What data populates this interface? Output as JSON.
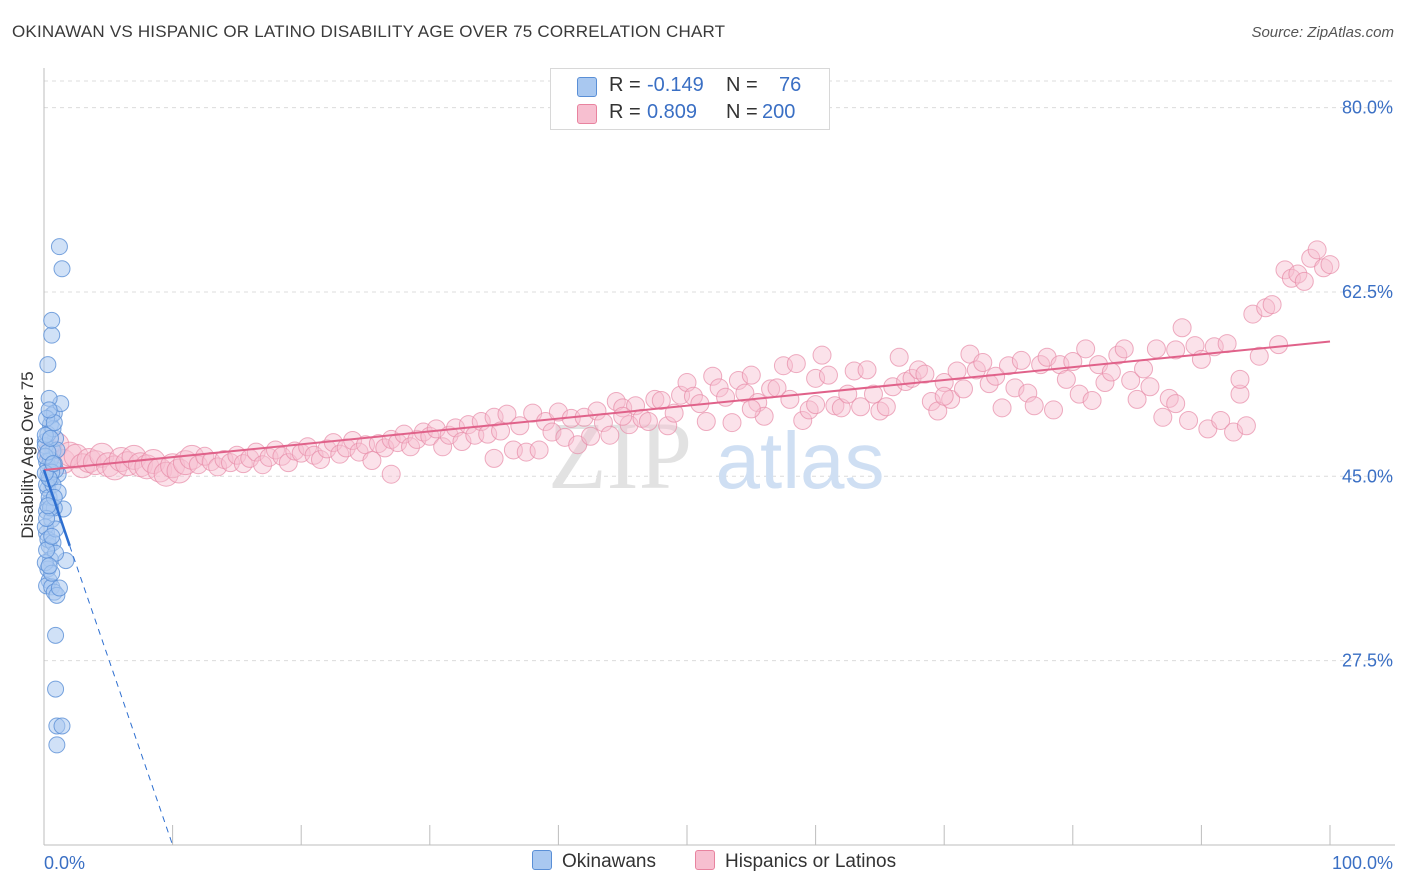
{
  "title": "OKINAWAN VS HISPANIC OR LATINO DISABILITY AGE OVER 75 CORRELATION CHART",
  "source": "Source: ZipAtlas.com",
  "watermark": {
    "zip": "ZIP",
    "atlas": "atlas"
  },
  "legend_top": {
    "rows": [
      {
        "r_label": "R =",
        "r_value": "-0.149",
        "n_label": "N =",
        "n_value": "76",
        "color": "#a9c8f0",
        "border": "#5a8fd6"
      },
      {
        "r_label": "R =",
        "r_value": "0.809",
        "n_label": "N =",
        "n_value": "200",
        "color": "#f7bfd0",
        "border": "#e8839f"
      }
    ]
  },
  "colors": {
    "okinawan_fill": "#a9c8f0",
    "okinawan_stroke": "#5a8fd6",
    "okinawan_line": "#2e6fd0",
    "hispanic_fill": "#f7bfd0",
    "hispanic_stroke": "#e78aa6",
    "hispanic_line": "#e0628a",
    "tick_text": "#3a6fc4",
    "grid": "#dcdcdc"
  },
  "chart_data": {
    "type": "scatter",
    "title": "OKINAWAN VS HISPANIC OR LATINO DISABILITY AGE OVER 75 CORRELATION CHART",
    "xlabel": "",
    "ylabel": "Disability Age Over 75",
    "xlim": [
      0,
      100
    ],
    "ylim": [
      10,
      83
    ],
    "x_tick_labels": [
      "0.0%",
      "100.0%"
    ],
    "y_ticks": [
      27.5,
      45.0,
      62.5,
      80.0
    ],
    "y_tick_labels": [
      "27.5%",
      "45.0%",
      "62.5%",
      "80.0%"
    ],
    "grid": true,
    "legend_position": "bottom-center",
    "series": [
      {
        "name": "Okinawans",
        "r": -0.149,
        "n": 76,
        "trend": {
          "x": [
            0,
            2
          ],
          "y": [
            45.6,
            38.4
          ],
          "extended_to": [
            10,
            10.0
          ]
        },
        "points": [
          [
            0.1,
            48.3
          ],
          [
            0.2,
            46.4
          ],
          [
            0.3,
            45.0
          ],
          [
            0.5,
            44.7
          ],
          [
            0.3,
            43.8
          ],
          [
            0.4,
            42.5
          ],
          [
            0.2,
            41.7
          ],
          [
            0.6,
            40.9
          ],
          [
            0.2,
            39.6
          ],
          [
            0.4,
            38.4
          ],
          [
            0.5,
            37.1
          ],
          [
            0.3,
            36.2
          ],
          [
            0.4,
            35.1
          ],
          [
            0.2,
            34.6
          ],
          [
            0.6,
            34.5
          ],
          [
            0.8,
            34.0
          ],
          [
            1.0,
            33.7
          ],
          [
            1.2,
            34.4
          ],
          [
            1.7,
            37.0
          ],
          [
            1.5,
            41.9
          ],
          [
            1.1,
            45.2
          ],
          [
            0.9,
            45.6
          ],
          [
            0.7,
            47.4
          ],
          [
            0.9,
            48.6
          ],
          [
            0.5,
            49.9
          ],
          [
            0.6,
            50.8
          ],
          [
            0.8,
            51.0
          ],
          [
            1.3,
            51.9
          ],
          [
            0.4,
            52.4
          ],
          [
            0.3,
            55.6
          ],
          [
            0.6,
            58.4
          ],
          [
            0.6,
            59.8
          ],
          [
            1.4,
            64.7
          ],
          [
            1.2,
            66.8
          ],
          [
            0.9,
            29.9
          ],
          [
            0.9,
            24.8
          ],
          [
            1.0,
            21.3
          ],
          [
            1.4,
            21.3
          ],
          [
            1.0,
            19.5
          ],
          [
            0.3,
            45.9
          ],
          [
            0.5,
            46.6
          ],
          [
            0.8,
            46.2
          ],
          [
            0.1,
            47.9
          ],
          [
            0.3,
            49.0
          ],
          [
            0.7,
            49.5
          ],
          [
            1.0,
            47.5
          ],
          [
            0.2,
            44.2
          ],
          [
            0.4,
            43.0
          ],
          [
            0.8,
            42.0
          ],
          [
            0.1,
            40.2
          ],
          [
            0.3,
            39.0
          ],
          [
            0.7,
            38.7
          ],
          [
            0.9,
            37.7
          ],
          [
            0.1,
            36.8
          ],
          [
            0.6,
            35.8
          ],
          [
            0.2,
            50.5
          ],
          [
            0.8,
            50.1
          ],
          [
            0.4,
            51.3
          ],
          [
            0.1,
            46.9
          ],
          [
            0.6,
            45.4
          ],
          [
            0.5,
            42.0
          ],
          [
            0.9,
            40.0
          ],
          [
            0.2,
            38.0
          ],
          [
            0.4,
            36.5
          ],
          [
            0.7,
            44.2
          ],
          [
            1.1,
            43.5
          ],
          [
            0.3,
            47.3
          ],
          [
            0.1,
            48.9
          ],
          [
            0.5,
            48.6
          ],
          [
            0.2,
            41.0
          ],
          [
            0.6,
            39.3
          ],
          [
            0.8,
            43.0
          ],
          [
            0.4,
            44.8
          ],
          [
            0.1,
            45.3
          ],
          [
            0.7,
            46.2
          ],
          [
            0.3,
            42.2
          ]
        ]
      },
      {
        "name": "Hispanics or Latinos",
        "r": 0.809,
        "n": 200,
        "trend": {
          "x": [
            0,
            100
          ],
          "y": [
            45.6,
            57.8
          ]
        },
        "points": [
          [
            0.5,
            47.3
          ],
          [
            1.0,
            48.0
          ],
          [
            1.5,
            46.4
          ],
          [
            2.0,
            47.1
          ],
          [
            2.5,
            46.9
          ],
          [
            3.0,
            46.0
          ],
          [
            3.5,
            46.5
          ],
          [
            4.0,
            46.3
          ],
          [
            4.5,
            47.0
          ],
          [
            5.0,
            46.1
          ],
          [
            5.5,
            45.8
          ],
          [
            6.0,
            46.6
          ],
          [
            6.5,
            46.2
          ],
          [
            7.0,
            46.8
          ],
          [
            7.5,
            46.1
          ],
          [
            8.0,
            45.9
          ],
          [
            8.5,
            46.4
          ],
          [
            9.0,
            45.6
          ],
          [
            9.5,
            45.2
          ],
          [
            10.0,
            46.0
          ],
          [
            10.5,
            45.5
          ],
          [
            11.0,
            46.3
          ],
          [
            11.5,
            46.8
          ],
          [
            12.0,
            46.1
          ],
          [
            12.5,
            46.9
          ],
          [
            13.0,
            46.4
          ],
          [
            13.5,
            45.9
          ],
          [
            14.0,
            46.6
          ],
          [
            14.5,
            46.3
          ],
          [
            15.0,
            47.0
          ],
          [
            15.5,
            46.2
          ],
          [
            16.0,
            46.7
          ],
          [
            16.5,
            47.3
          ],
          [
            17.0,
            46.1
          ],
          [
            17.5,
            46.8
          ],
          [
            18.0,
            47.5
          ],
          [
            18.5,
            46.9
          ],
          [
            19.0,
            46.3
          ],
          [
            19.5,
            47.4
          ],
          [
            20.0,
            47.2
          ],
          [
            20.5,
            47.8
          ],
          [
            21.0,
            47.0
          ],
          [
            21.5,
            46.6
          ],
          [
            22.0,
            47.6
          ],
          [
            22.5,
            48.2
          ],
          [
            23.0,
            47.1
          ],
          [
            23.5,
            47.7
          ],
          [
            24.0,
            48.4
          ],
          [
            24.5,
            47.3
          ],
          [
            25.0,
            48.0
          ],
          [
            25.5,
            46.5
          ],
          [
            26.0,
            48.1
          ],
          [
            26.5,
            47.7
          ],
          [
            27.0,
            48.5
          ],
          [
            27.5,
            48.2
          ],
          [
            28.0,
            49.0
          ],
          [
            28.5,
            47.8
          ],
          [
            29.0,
            48.5
          ],
          [
            29.5,
            49.2
          ],
          [
            30.0,
            48.8
          ],
          [
            30.5,
            49.5
          ],
          [
            31.0,
            47.8
          ],
          [
            31.5,
            48.9
          ],
          [
            32.0,
            49.6
          ],
          [
            32.5,
            48.3
          ],
          [
            33.0,
            49.9
          ],
          [
            33.5,
            48.9
          ],
          [
            34.0,
            50.2
          ],
          [
            34.5,
            49.0
          ],
          [
            35.0,
            50.6
          ],
          [
            35.5,
            49.3
          ],
          [
            36.0,
            50.9
          ],
          [
            36.5,
            47.5
          ],
          [
            37.0,
            49.8
          ],
          [
            37.5,
            47.3
          ],
          [
            38.0,
            51.0
          ],
          [
            38.5,
            47.5
          ],
          [
            39.0,
            50.2
          ],
          [
            39.5,
            49.2
          ],
          [
            40.0,
            51.1
          ],
          [
            40.5,
            48.7
          ],
          [
            41.0,
            50.5
          ],
          [
            41.5,
            48.0
          ],
          [
            42.0,
            50.6
          ],
          [
            42.5,
            48.8
          ],
          [
            43.0,
            51.2
          ],
          [
            43.5,
            50.1
          ],
          [
            44.0,
            48.9
          ],
          [
            44.5,
            52.1
          ],
          [
            45.0,
            51.5
          ],
          [
            45.5,
            49.9
          ],
          [
            46.0,
            51.7
          ],
          [
            46.5,
            50.5
          ],
          [
            47.0,
            50.2
          ],
          [
            47.5,
            52.3
          ],
          [
            48.0,
            52.2
          ],
          [
            48.5,
            49.8
          ],
          [
            49.0,
            51.0
          ],
          [
            49.5,
            52.7
          ],
          [
            50.0,
            53.9
          ],
          [
            50.5,
            52.6
          ],
          [
            51.0,
            51.9
          ],
          [
            51.5,
            50.2
          ],
          [
            52.0,
            54.5
          ],
          [
            52.5,
            53.4
          ],
          [
            53.0,
            52.5
          ],
          [
            53.5,
            50.1
          ],
          [
            54.0,
            54.1
          ],
          [
            54.5,
            52.9
          ],
          [
            55.0,
            54.6
          ],
          [
            55.5,
            52.0
          ],
          [
            56.0,
            50.7
          ],
          [
            56.5,
            53.3
          ],
          [
            57.0,
            53.4
          ],
          [
            57.5,
            55.5
          ],
          [
            58.0,
            52.3
          ],
          [
            58.5,
            55.7
          ],
          [
            59.0,
            50.3
          ],
          [
            59.5,
            51.3
          ],
          [
            60.0,
            54.3
          ],
          [
            60.5,
            56.5
          ],
          [
            61.0,
            54.6
          ],
          [
            61.5,
            51.7
          ],
          [
            62.0,
            51.5
          ],
          [
            62.5,
            52.8
          ],
          [
            63.0,
            55.0
          ],
          [
            63.5,
            51.6
          ],
          [
            64.0,
            55.1
          ],
          [
            64.5,
            52.8
          ],
          [
            65.0,
            51.2
          ],
          [
            65.5,
            51.6
          ],
          [
            66.0,
            53.5
          ],
          [
            66.5,
            56.3
          ],
          [
            67.0,
            54.0
          ],
          [
            67.5,
            54.3
          ],
          [
            68.0,
            55.1
          ],
          [
            68.5,
            54.7
          ],
          [
            69.0,
            52.1
          ],
          [
            69.5,
            51.2
          ],
          [
            70.0,
            53.9
          ],
          [
            70.5,
            52.3
          ],
          [
            71.0,
            55.0
          ],
          [
            71.5,
            53.3
          ],
          [
            72.0,
            56.6
          ],
          [
            72.5,
            55.1
          ],
          [
            73.0,
            55.8
          ],
          [
            73.5,
            53.8
          ],
          [
            74.0,
            54.5
          ],
          [
            74.5,
            51.5
          ],
          [
            75.0,
            55.5
          ],
          [
            75.5,
            53.4
          ],
          [
            76.0,
            56.0
          ],
          [
            76.5,
            52.9
          ],
          [
            77.0,
            51.7
          ],
          [
            77.5,
            55.6
          ],
          [
            78.0,
            56.3
          ],
          [
            78.5,
            51.3
          ],
          [
            79.0,
            55.6
          ],
          [
            79.5,
            54.2
          ],
          [
            80.0,
            55.9
          ],
          [
            80.5,
            52.8
          ],
          [
            81.0,
            57.1
          ],
          [
            81.5,
            52.2
          ],
          [
            82.0,
            55.6
          ],
          [
            82.5,
            53.9
          ],
          [
            83.0,
            54.9
          ],
          [
            83.5,
            56.5
          ],
          [
            84.0,
            57.1
          ],
          [
            84.5,
            54.1
          ],
          [
            85.0,
            52.3
          ],
          [
            85.5,
            55.2
          ],
          [
            86.0,
            53.5
          ],
          [
            86.5,
            57.1
          ],
          [
            87.0,
            50.6
          ],
          [
            87.5,
            52.4
          ],
          [
            88.0,
            57.0
          ],
          [
            88.5,
            59.1
          ],
          [
            89.0,
            50.3
          ],
          [
            89.5,
            57.4
          ],
          [
            90.0,
            56.1
          ],
          [
            90.5,
            49.5
          ],
          [
            91.0,
            57.3
          ],
          [
            91.5,
            50.3
          ],
          [
            92.0,
            57.6
          ],
          [
            92.5,
            49.2
          ],
          [
            93.0,
            52.8
          ],
          [
            93.5,
            49.8
          ],
          [
            94.0,
            60.4
          ],
          [
            94.5,
            56.4
          ],
          [
            95.0,
            61.0
          ],
          [
            95.5,
            61.3
          ],
          [
            96.0,
            57.5
          ],
          [
            96.5,
            64.6
          ],
          [
            97.0,
            63.8
          ],
          [
            97.5,
            64.2
          ],
          [
            98.0,
            63.5
          ],
          [
            98.5,
            65.7
          ],
          [
            99.0,
            66.5
          ],
          [
            99.5,
            64.8
          ],
          [
            100.0,
            65.1
          ],
          [
            60.0,
            51.8
          ],
          [
            35.0,
            46.7
          ],
          [
            27.0,
            45.2
          ],
          [
            45.0,
            50.7
          ],
          [
            70.0,
            52.6
          ],
          [
            88.0,
            51.9
          ],
          [
            93.0,
            54.2
          ],
          [
            55.0,
            51.4
          ]
        ]
      }
    ]
  }
}
